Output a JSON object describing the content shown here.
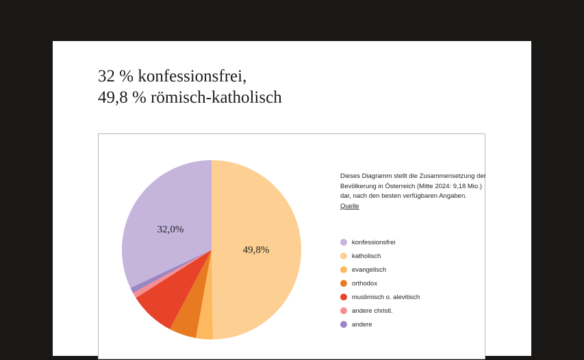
{
  "header": {
    "title_line1": "32 % konfessionsfrei,",
    "title_line2": "49,8 % römisch-katholisch"
  },
  "description": {
    "text": "Dieses Diagramm stellt die Zusammensetzung der Bevölkerung in Österreich (Mitte 2024: 9,18 Mio.) dar, nach den besten verfügbaren Angaben.",
    "source_link": "Quelle"
  },
  "pie_labels": {
    "katholisch": "49,8%",
    "konfessionsfrei": "32,0%"
  },
  "legend": [
    {
      "label": "konfessionsfrei",
      "color": "#c5b5dd"
    },
    {
      "label": "katholisch",
      "color": "#fdcf92"
    },
    {
      "label": "evangelisch",
      "color": "#fcb960"
    },
    {
      "label": "orthodox",
      "color": "#e87a22"
    },
    {
      "label": "muslimisch o. alevitisch",
      "color": "#e6432a"
    },
    {
      "label": "andere christl.",
      "color": "#f58f94"
    },
    {
      "label": "andere",
      "color": "#9a86c0"
    }
  ],
  "chart_data": {
    "type": "pie",
    "title": "32 % konfessionsfrei, 49,8 % römisch-katholisch",
    "subtitle": "Dieses Diagramm stellt die Zusammensetzung der Bevölkerung in Österreich (Mitte 2024: 9,18 Mio.) dar, nach den besten verfügbaren Angaben.",
    "start_angle": "12 o'clock, clockwise",
    "categories": [
      "katholisch",
      "evangelisch",
      "orthodox",
      "muslimisch o. alevitisch",
      "andere christl.",
      "andere",
      "konfessionsfrei"
    ],
    "values": [
      49.8,
      3.0,
      4.9,
      8.3,
      1.0,
      1.0,
      32.0
    ],
    "colors": [
      "#fdcf92",
      "#fcb960",
      "#e87a22",
      "#e6432a",
      "#f58f94",
      "#9a86c0",
      "#c5b5dd"
    ],
    "data_labels": {
      "katholisch": "49,8%",
      "konfessionsfrei": "32,0%"
    },
    "legend_position": "right",
    "legend_order": [
      "konfessionsfrei",
      "katholisch",
      "evangelisch",
      "orthodox",
      "muslimisch o. alevitisch",
      "andere christl.",
      "andere"
    ]
  }
}
